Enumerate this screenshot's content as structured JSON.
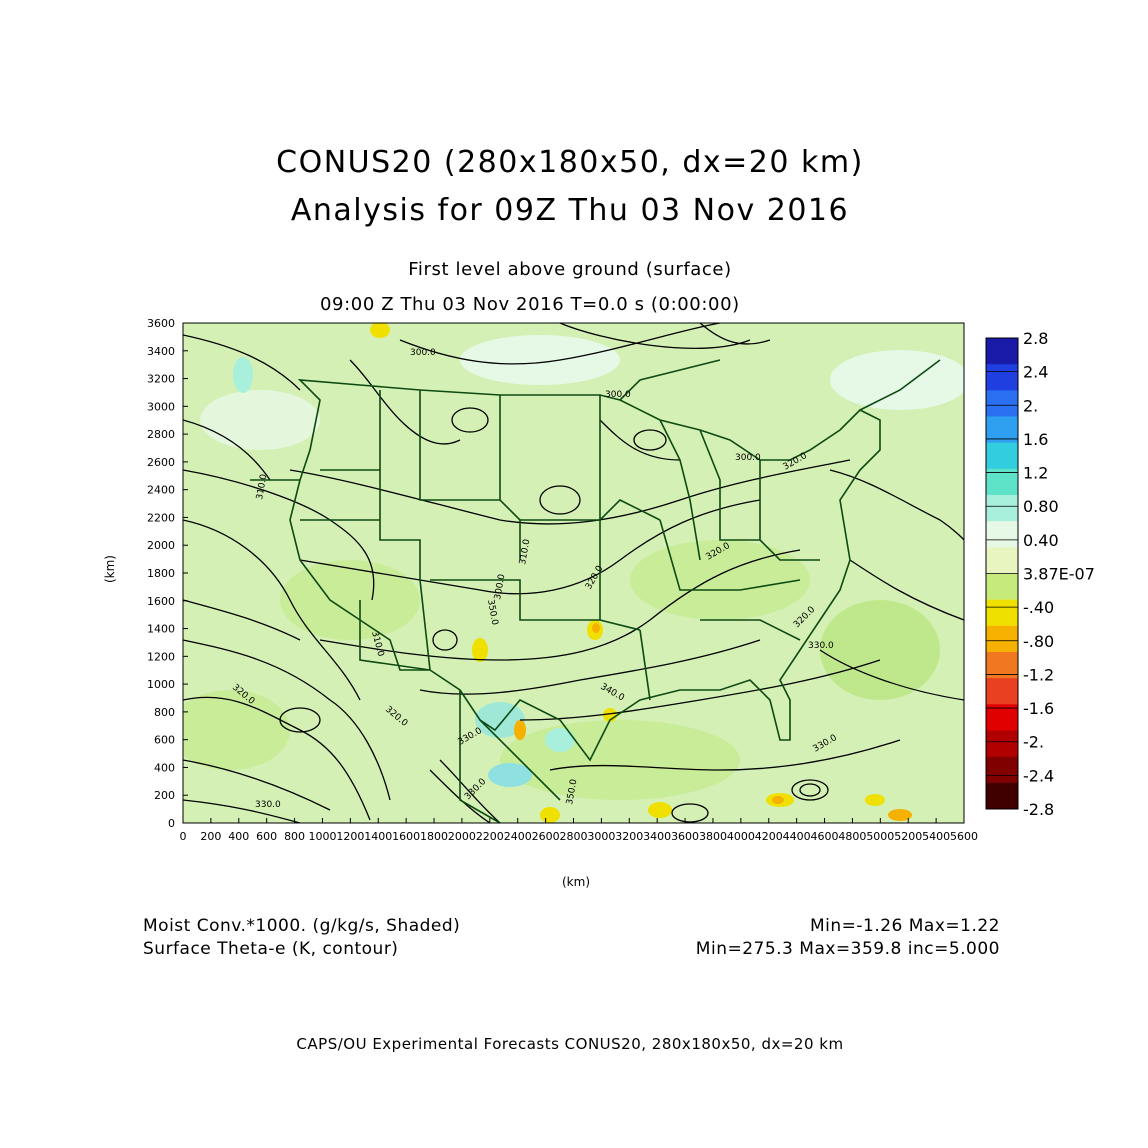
{
  "title": {
    "line1": "CONUS20 (280x180x50, dx=20 km)",
    "line2": "Analysis for 09Z Thu 03 Nov 2016"
  },
  "subtitle": {
    "level": "First level above ground (surface)",
    "time": "09:00 Z Thu 03 Nov 2016    T=0.0 s (0:00:00)"
  },
  "axes": {
    "xlabel": "(km)",
    "ylabel": "(km)",
    "xrange": [
      0,
      5600
    ],
    "yrange": [
      0,
      3600
    ],
    "xticks": [
      "0",
      "200",
      "400",
      "600",
      "800",
      "1000",
      "1200",
      "1400",
      "1600",
      "1800",
      "2000",
      "2200",
      "2400",
      "2600",
      "2800",
      "3000",
      "3200",
      "3400",
      "3600",
      "3800",
      "4000",
      "4200",
      "4400",
      "4600",
      "4800",
      "5000",
      "5200",
      "5400",
      "5600"
    ],
    "yticks": [
      "0",
      "200",
      "400",
      "600",
      "800",
      "1000",
      "1200",
      "1400",
      "1600",
      "1800",
      "2000",
      "2200",
      "2400",
      "2600",
      "2800",
      "3000",
      "3200",
      "3400",
      "3600"
    ]
  },
  "colorbar": {
    "labels": [
      "2.8",
      "2.4",
      "2.",
      "1.6",
      "1.2",
      "0.80",
      "0.40",
      "3.87E-07",
      "-.40",
      "-.80",
      "-1.2",
      "-1.6",
      "-2.",
      "-2.4",
      "-2.8"
    ],
    "colors": [
      "#1a1aa8",
      "#1f3fe0",
      "#2a6ff0",
      "#2f9ff0",
      "#33cde0",
      "#5fe3c8",
      "#a8f0dc",
      "#e6f8e6",
      "#e8f5c0",
      "#c7eb7a",
      "#f0e000",
      "#f5b000",
      "#f07820",
      "#e84020",
      "#e00000",
      "#b00000",
      "#800000",
      "#400000"
    ]
  },
  "contour_labels": [
    "300.0",
    "300.0",
    "300.0",
    "300.0",
    "310.0",
    "310.0",
    "310.0",
    "320.0",
    "320.0",
    "320.0",
    "320.0",
    "320.0",
    "320.0",
    "330.0",
    "330.0",
    "330.0",
    "330.0",
    "330.0",
    "340.0",
    "350.0",
    "350.0"
  ],
  "legend": {
    "shaded": "Moist Conv.*1000. (g/kg/s, Shaded)",
    "shaded_range": "Min=-1.26  Max=1.22",
    "contour": "Surface Theta-e (K, contour)",
    "contour_range": "Min=275.3  Max=359.8  inc=5.000"
  },
  "footer": "CAPS/OU Experimental Forecasts   CONUS20, 280x180x50, dx=20 km",
  "map_colors": {
    "background": "#d4f0b4",
    "contour": "#000000",
    "boundary": "#0d4a12"
  }
}
